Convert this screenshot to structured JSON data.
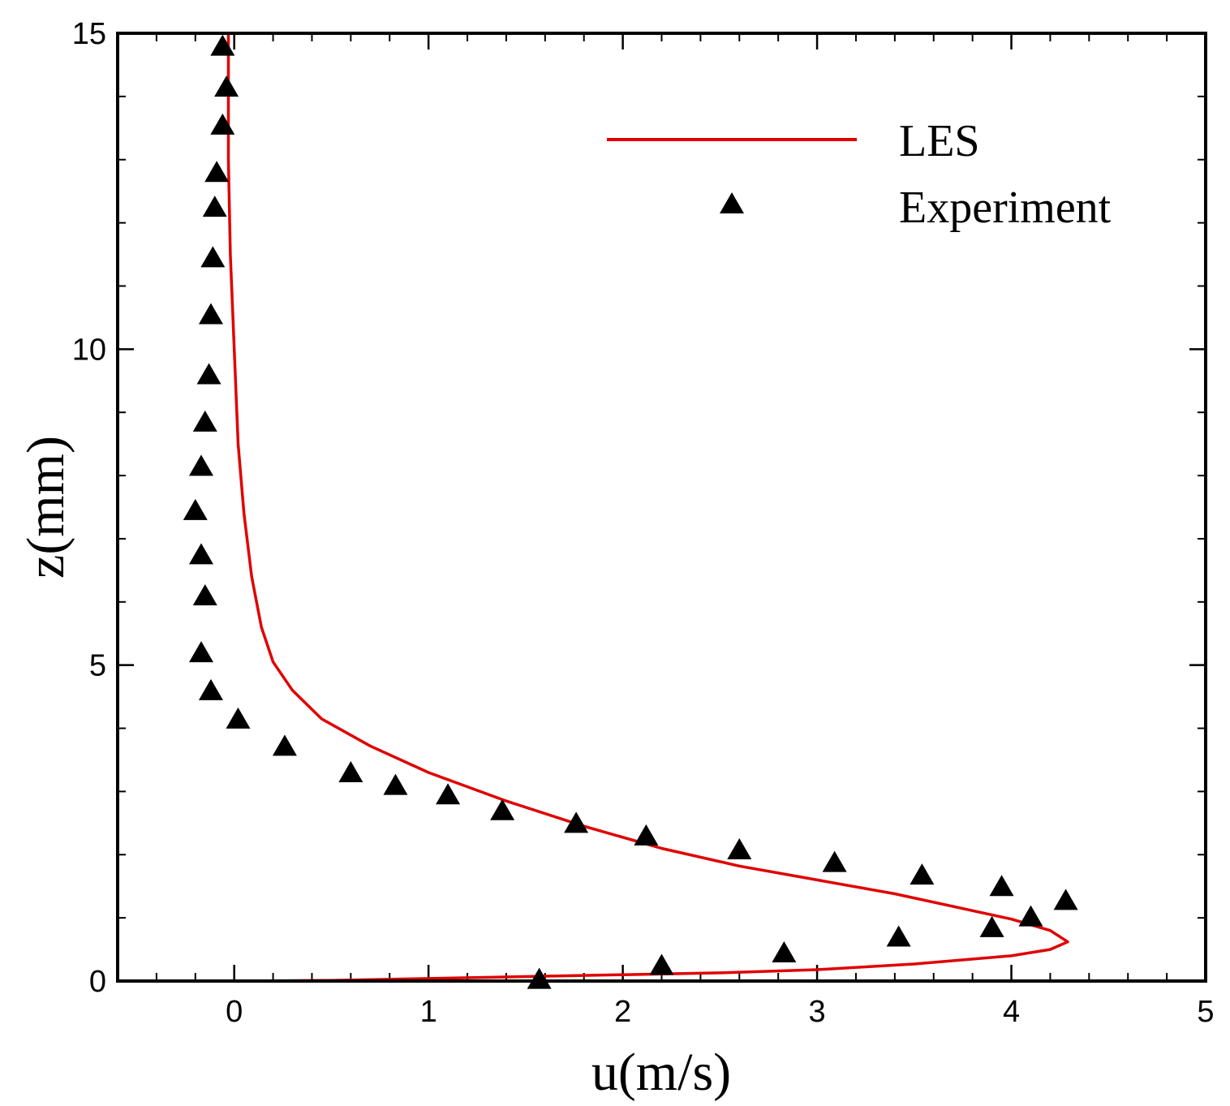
{
  "chart_data": {
    "type": "line",
    "title": "",
    "xlabel": "u(m/s)",
    "ylabel": "z(mm)",
    "xlim": [
      -0.6,
      5
    ],
    "ylim": [
      0,
      15
    ],
    "xticks": [
      0,
      1,
      2,
      3,
      4,
      5
    ],
    "yticks": [
      0,
      5,
      10,
      15
    ],
    "x_minor_step": 0.2,
    "y_minor_step": 1,
    "grid": false,
    "legend_position": "top-right",
    "series": [
      {
        "name": "LES",
        "kind": "line",
        "color": "#e00000",
        "points": [
          [
            0.1,
            0.0
          ],
          [
            0.5,
            0.01
          ],
          [
            1.0,
            0.04
          ],
          [
            1.5,
            0.07
          ],
          [
            2.0,
            0.1
          ],
          [
            2.5,
            0.13
          ],
          [
            3.0,
            0.18
          ],
          [
            3.5,
            0.27
          ],
          [
            4.0,
            0.4
          ],
          [
            4.2,
            0.5
          ],
          [
            4.29,
            0.62
          ],
          [
            4.2,
            0.8
          ],
          [
            4.0,
            0.98
          ],
          [
            3.7,
            1.18
          ],
          [
            3.4,
            1.38
          ],
          [
            3.0,
            1.6
          ],
          [
            2.6,
            1.82
          ],
          [
            2.2,
            2.1
          ],
          [
            1.8,
            2.45
          ],
          [
            1.4,
            2.85
          ],
          [
            1.0,
            3.3
          ],
          [
            0.7,
            3.72
          ],
          [
            0.45,
            4.15
          ],
          [
            0.3,
            4.6
          ],
          [
            0.2,
            5.05
          ],
          [
            0.14,
            5.6
          ],
          [
            0.09,
            6.4
          ],
          [
            0.05,
            7.4
          ],
          [
            0.02,
            8.5
          ],
          [
            0.0,
            10.0
          ],
          [
            -0.02,
            11.5
          ],
          [
            -0.03,
            13.0
          ],
          [
            -0.03,
            15.0
          ]
        ]
      },
      {
        "name": "Experiment",
        "kind": "scatter",
        "marker": "triangle",
        "color": "#000000",
        "points": [
          [
            1.57,
            0.03
          ],
          [
            2.2,
            0.25
          ],
          [
            2.83,
            0.45
          ],
          [
            3.42,
            0.7
          ],
          [
            3.9,
            0.85
          ],
          [
            4.1,
            1.02
          ],
          [
            4.28,
            1.28
          ],
          [
            3.95,
            1.5
          ],
          [
            3.54,
            1.68
          ],
          [
            3.09,
            1.88
          ],
          [
            2.6,
            2.08
          ],
          [
            2.12,
            2.3
          ],
          [
            1.76,
            2.5
          ],
          [
            1.38,
            2.7
          ],
          [
            1.1,
            2.95
          ],
          [
            0.83,
            3.1
          ],
          [
            0.6,
            3.3
          ],
          [
            0.26,
            3.72
          ],
          [
            0.02,
            4.15
          ],
          [
            -0.12,
            4.6
          ],
          [
            -0.17,
            5.2
          ],
          [
            -0.15,
            6.1
          ],
          [
            -0.17,
            6.75
          ],
          [
            -0.2,
            7.45
          ],
          [
            -0.17,
            8.15
          ],
          [
            -0.15,
            8.85
          ],
          [
            -0.13,
            9.6
          ],
          [
            -0.12,
            10.55
          ],
          [
            -0.11,
            11.45
          ],
          [
            -0.1,
            12.25
          ],
          [
            -0.09,
            12.8
          ],
          [
            -0.06,
            13.55
          ],
          [
            -0.04,
            14.15
          ],
          [
            -0.06,
            14.8
          ]
        ]
      }
    ]
  }
}
